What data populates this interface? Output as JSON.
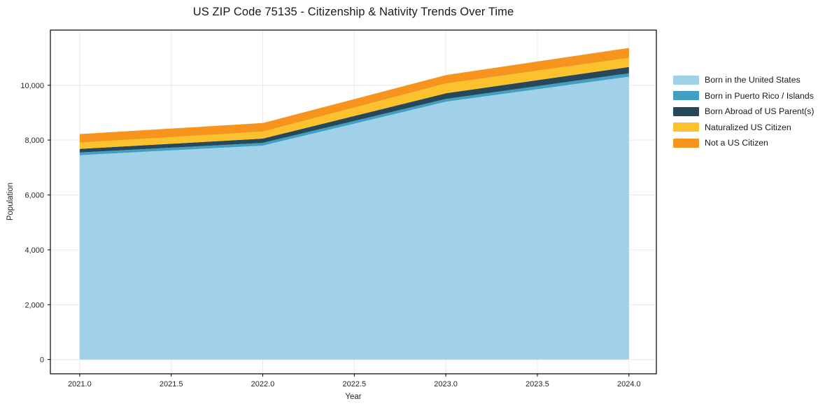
{
  "title": "US ZIP Code 75135 - Citizenship & Nativity Trends Over Time",
  "chart_data": {
    "type": "area",
    "stacked": true,
    "title": "US ZIP Code 75135 - Citizenship & Nativity Trends Over Time",
    "xlabel": "Year",
    "ylabel": "Population",
    "x": [
      2021,
      2022,
      2023,
      2024
    ],
    "series": [
      {
        "name": "Born in the United States",
        "color": "#A0D1E8",
        "values": [
          7450,
          7800,
          9400,
          10310
        ]
      },
      {
        "name": "Born in Puerto Rico / Islands",
        "color": "#3FA0C1",
        "values": [
          100,
          100,
          100,
          125
        ]
      },
      {
        "name": "Born Abroad of US Parent(s)",
        "color": "#27485A",
        "values": [
          130,
          155,
          205,
          230
        ]
      },
      {
        "name": "Naturalized US Citizen",
        "color": "#FCC22D",
        "values": [
          230,
          255,
          360,
          335
        ]
      },
      {
        "name": "Not a US Citizen",
        "color": "#F6941D",
        "values": [
          310,
          310,
          305,
          360
        ]
      }
    ],
    "totals": [
      8220,
      8620,
      10370,
      11360
    ],
    "xticks": [
      2021.0,
      2021.5,
      2022.0,
      2022.5,
      2023.0,
      2023.5,
      2024.0
    ],
    "yticks": [
      0,
      2000,
      4000,
      6000,
      8000,
      10000
    ],
    "xlim": [
      2020.84,
      2024.15
    ],
    "ylim": [
      -520,
      12010
    ],
    "grid": true,
    "grid_color": "#E9E9E9",
    "axis_color": "#000000",
    "tick_text_color": "#262626",
    "legend_position": "center-right"
  }
}
